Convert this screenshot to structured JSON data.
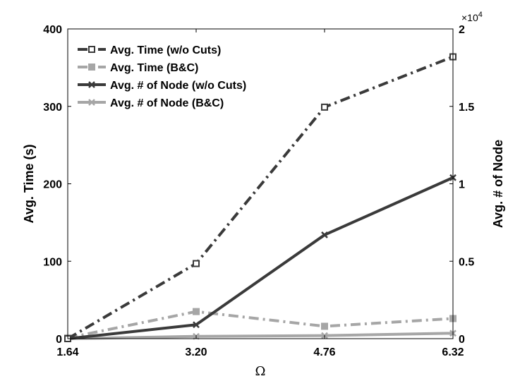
{
  "chart_data": {
    "type": "line",
    "x": [
      1.64,
      3.2,
      4.76,
      6.32
    ],
    "x_tick_labels": [
      "1.64",
      "3.20",
      "4.76",
      "6.32"
    ],
    "xlabel": "Ω",
    "ylabel_left": "Avg. Time (s)",
    "ylabel_right": "Avg. # of Node",
    "ylim_left": [
      0,
      400
    ],
    "ylim_right": [
      0,
      20000
    ],
    "left_ticks": [
      0,
      100,
      200,
      300,
      400
    ],
    "left_tick_labels": [
      "0",
      "100",
      "200",
      "300",
      "400"
    ],
    "right_ticks": [
      0,
      5000,
      10000,
      15000,
      20000
    ],
    "right_tick_labels": [
      "0",
      "0.5",
      "1",
      "1.5",
      "2"
    ],
    "right_exponent": {
      "base": "×10",
      "power": "4"
    },
    "legend_position": "top-left",
    "series": [
      {
        "name": "Avg. Time (w/o Cuts)",
        "axis": "left",
        "values": [
          0,
          97,
          299,
          364
        ],
        "color": "#3a3a3a",
        "dash": "dashdot",
        "marker": "square-open"
      },
      {
        "name": "Avg. Time (B&C)",
        "axis": "left",
        "values": [
          1,
          35,
          16,
          26
        ],
        "color": "#a6a6a6",
        "dash": "dashdot",
        "marker": "square-filled"
      },
      {
        "name": "Avg. # of Node (w/o Cuts)",
        "axis": "right",
        "values": [
          0,
          900,
          6700,
          10400
        ],
        "color": "#3a3a3a",
        "dash": "solid",
        "marker": "x"
      },
      {
        "name": "Avg. # of Node (B&C)",
        "axis": "right",
        "values": [
          0,
          150,
          200,
          350
        ],
        "color": "#a6a6a6",
        "dash": "solid",
        "marker": "x"
      }
    ]
  }
}
